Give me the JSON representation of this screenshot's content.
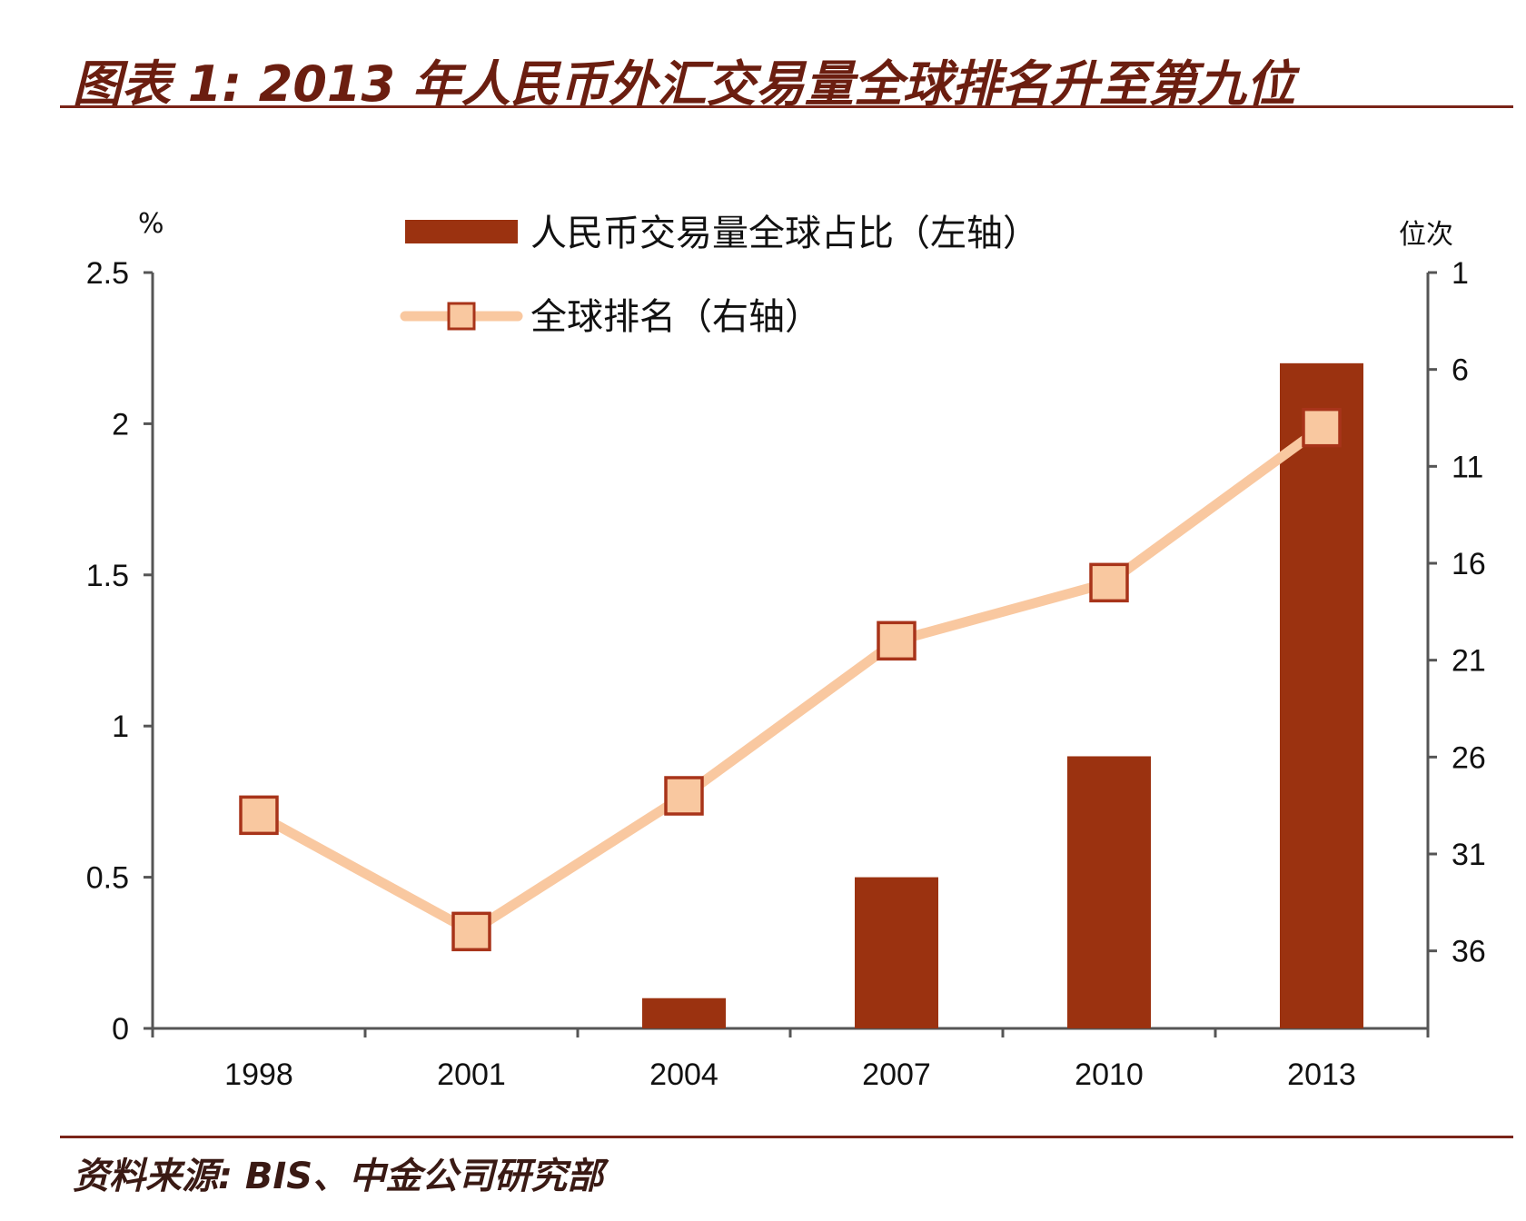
{
  "header": {
    "title": "图表 1: 2013 年人民币外汇交易量全球排名升至第九位"
  },
  "footer": {
    "source": "资料来源: BIS、中金公司研究部"
  },
  "colors": {
    "bar": "#9b3210",
    "line": "#f9c8a0",
    "marker_fill": "#f9c8a0",
    "marker_stroke": "#a8341a",
    "text_dark": "#6b1e10"
  },
  "chart_data": {
    "type": "bar",
    "categories": [
      "1998",
      "2001",
      "2004",
      "2007",
      "2010",
      "2013"
    ],
    "series": [
      {
        "name": "人民币交易量全球占比（左轴）",
        "type": "bar",
        "axis": "left",
        "values": [
          0,
          0,
          0.1,
          0.5,
          0.9,
          2.2
        ]
      },
      {
        "name": "全球排名（右轴）",
        "type": "line",
        "axis": "right",
        "values": [
          29,
          35,
          28,
          20,
          17,
          9
        ]
      }
    ],
    "y_left": {
      "label": "%",
      "range": [
        0,
        2.5
      ],
      "ticks": [
        "0",
        "0.5",
        "1",
        "1.5",
        "2",
        "2.5"
      ]
    },
    "y_right": {
      "label": "位次",
      "range": [
        1,
        40
      ],
      "inverted": true,
      "ticks": [
        "1",
        "6",
        "11",
        "16",
        "21",
        "26",
        "31",
        "36"
      ]
    },
    "grid": false,
    "legend_position": "top-center"
  }
}
